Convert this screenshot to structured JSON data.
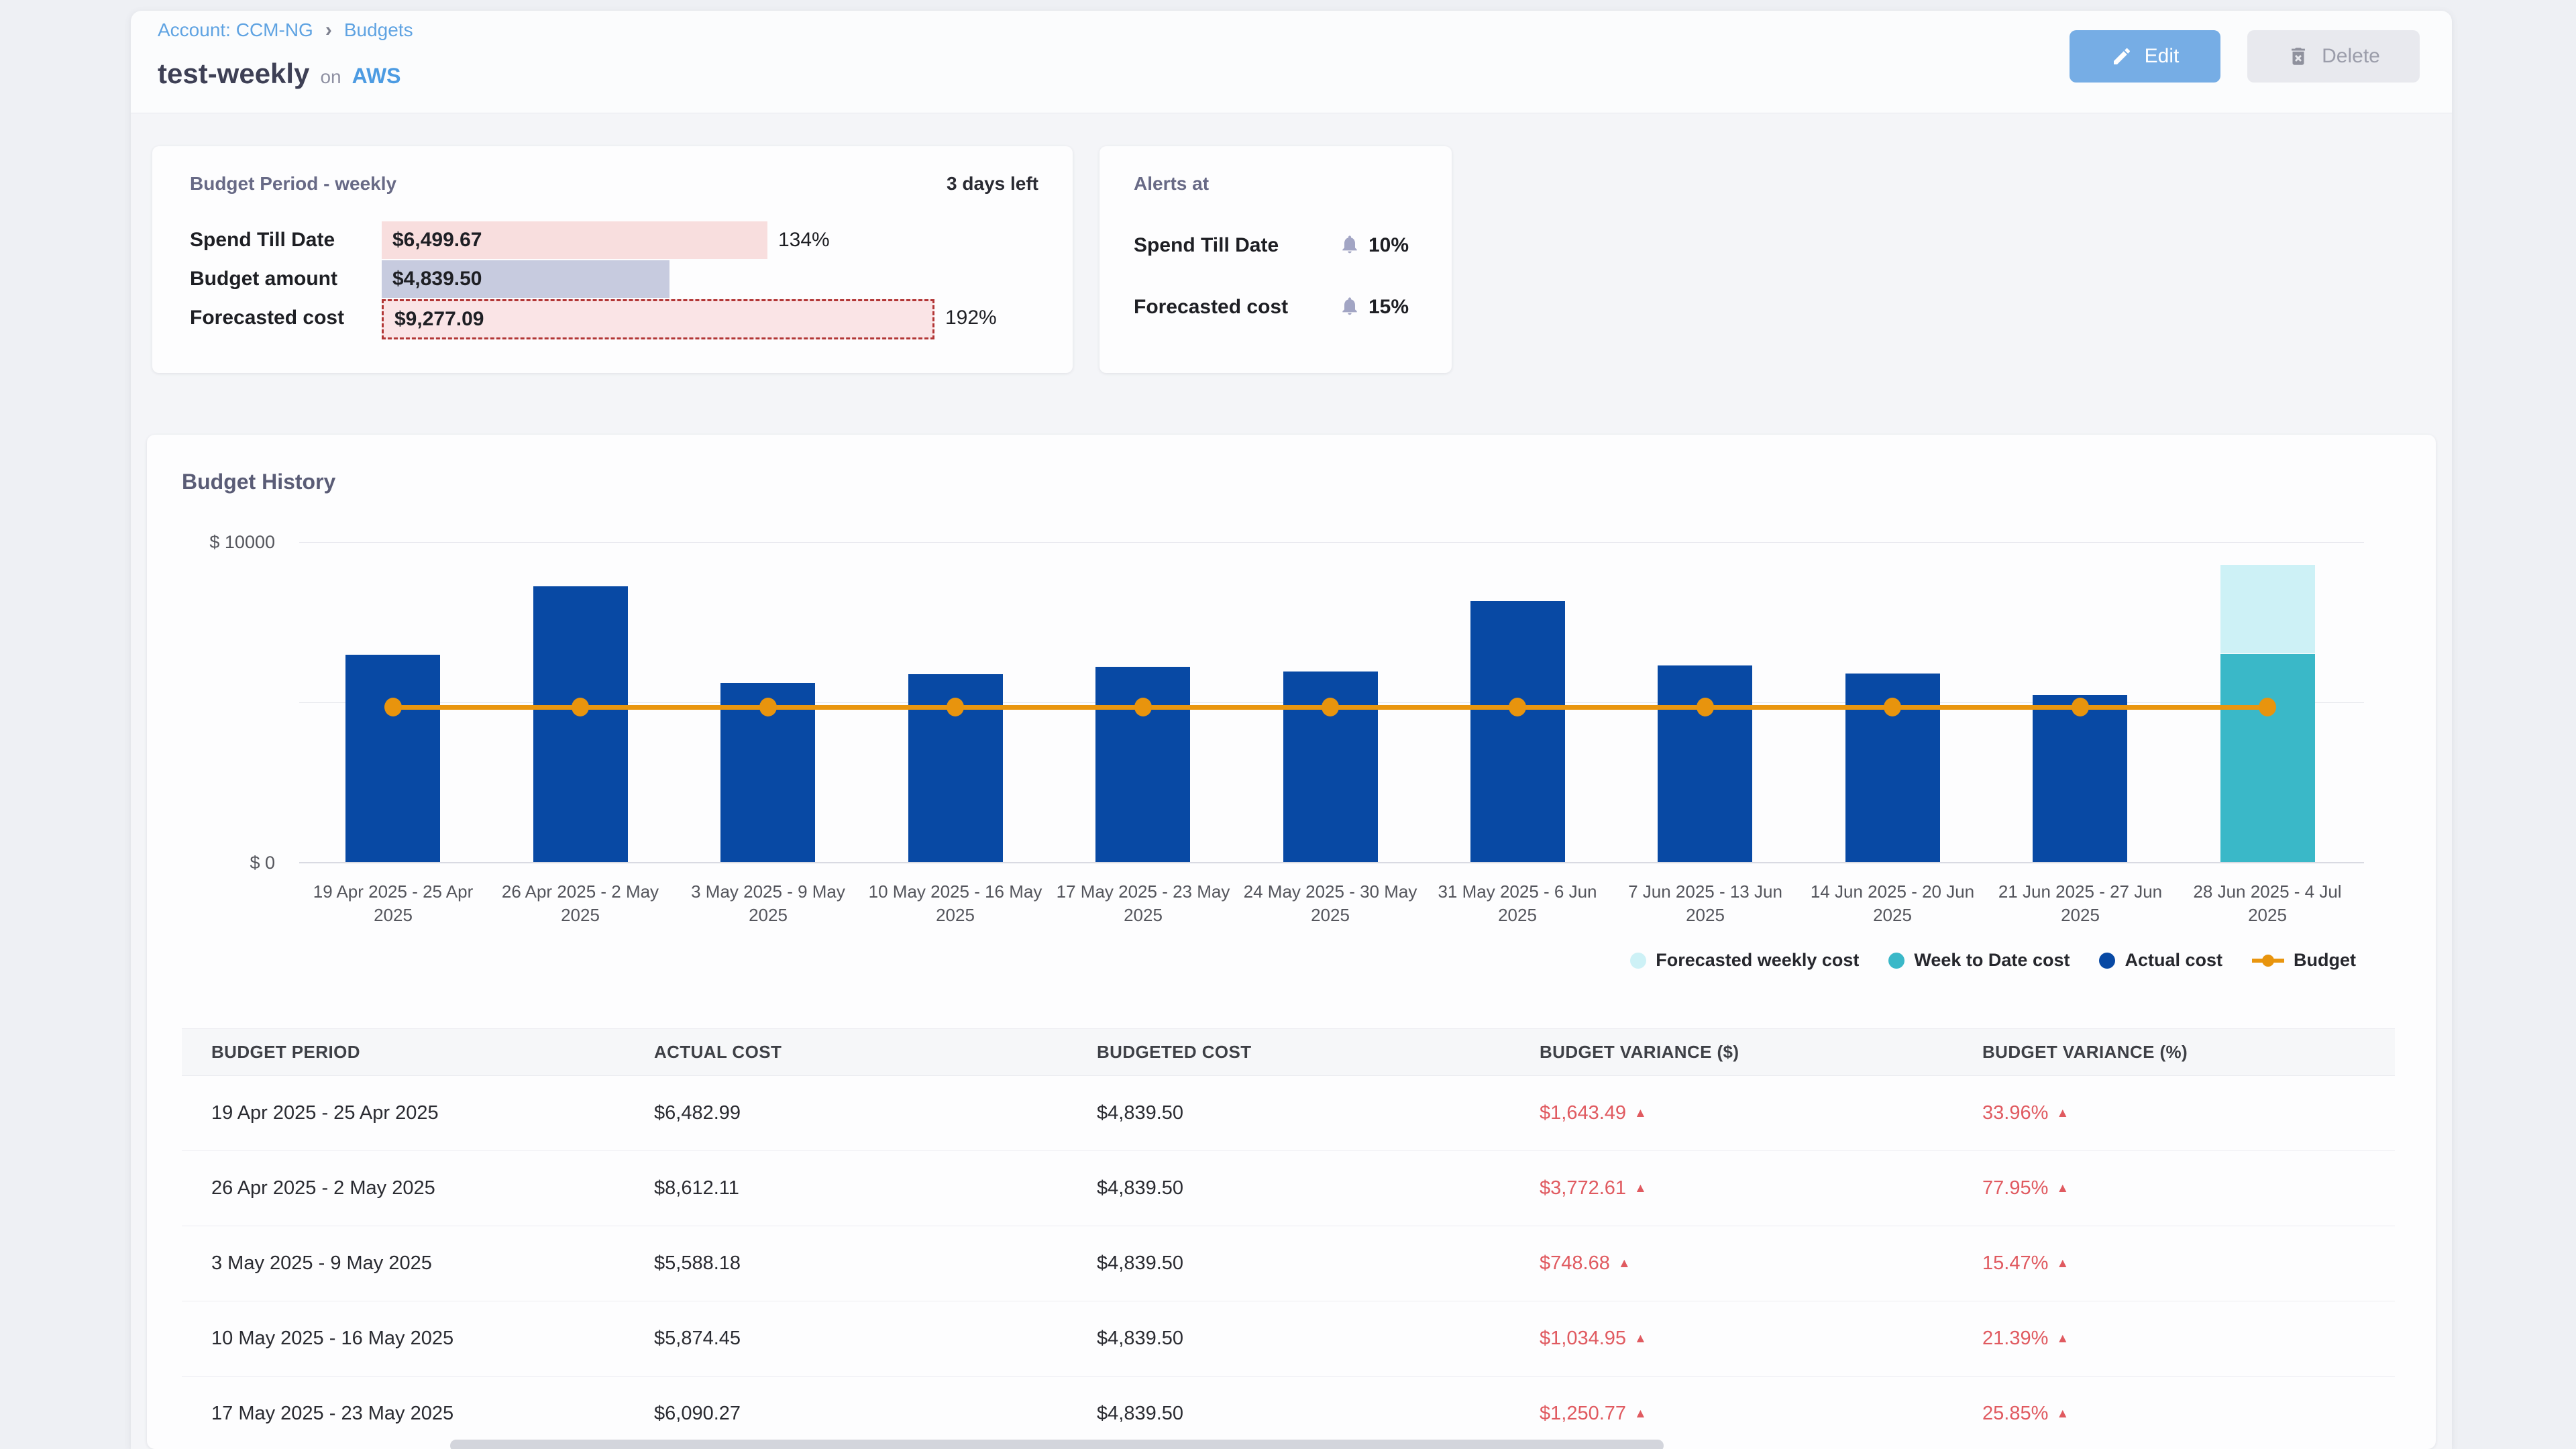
{
  "breadcrumb": {
    "account": "Account: CCM-NG",
    "separator": "›",
    "page": "Budgets"
  },
  "header": {
    "title": "test-weekly",
    "on_label": "on",
    "provider": "AWS",
    "edit_label": "Edit",
    "delete_label": "Delete"
  },
  "budget_period_card": {
    "title": "Budget Period - weekly",
    "days_left": "3 days left",
    "rows": [
      {
        "label": "Spend Till Date",
        "value": "$6,499.67",
        "percent_label": "134%",
        "percent": 134,
        "style": "spend"
      },
      {
        "label": "Budget amount",
        "value": "$4,839.50",
        "percent_label": "",
        "percent": 100,
        "style": "budget"
      },
      {
        "label": "Forecasted cost",
        "value": "$9,277.09",
        "percent_label": "192%",
        "percent": 192,
        "style": "forecast"
      }
    ]
  },
  "alerts_card": {
    "title": "Alerts at",
    "rows": [
      {
        "label": "Spend Till Date",
        "threshold": "10%"
      },
      {
        "label": "Forecasted cost",
        "threshold": "15%"
      }
    ]
  },
  "chart_data": {
    "type": "bar",
    "title": "Budget History",
    "ylabel_top": "$ 10000",
    "ylabel_bottom": "$ 0",
    "ymin": 0,
    "ymax": 10000,
    "gridlines": [
      0,
      5000,
      10000
    ],
    "legend_position": "bottom-right",
    "categories": [
      "19 Apr 2025 - 25 Apr 2025",
      "26 Apr 2025 - 2 May 2025",
      "3 May 2025 - 9 May 2025",
      "10 May 2025 - 16 May 2025",
      "17 May 2025 - 23 May 2025",
      "24 May 2025 - 30 May 2025",
      "31 May 2025 - 6 Jun 2025",
      "7 Jun 2025 - 13 Jun 2025",
      "14 Jun 2025 - 20 Jun 2025",
      "21 Jun 2025 - 27 Jun 2025",
      "28 Jun 2025 - 4 Jul 2025"
    ],
    "series": [
      {
        "name": "Actual cost",
        "type": "column",
        "color": "#0849a4",
        "values": [
          6482.99,
          8612.11,
          5588.18,
          5874.45,
          6090.27,
          5950,
          8150,
          6150,
          5900,
          5230,
          null
        ]
      },
      {
        "name": "Week to Date cost",
        "type": "column",
        "color": "#3ab8c8",
        "values": [
          null,
          null,
          null,
          null,
          null,
          null,
          null,
          null,
          null,
          null,
          6499.67
        ]
      },
      {
        "name": "Forecasted weekly cost",
        "type": "column-stacked-top",
        "color": "#cdf1f6",
        "values": [
          null,
          null,
          null,
          null,
          null,
          null,
          null,
          null,
          null,
          null,
          9277.09
        ]
      },
      {
        "name": "Budget",
        "type": "line",
        "color": "#e9960f",
        "value": 4839.5
      }
    ],
    "legend": [
      "Forecasted weekly cost",
      "Week to Date cost",
      "Actual cost",
      "Budget"
    ]
  },
  "table": {
    "columns": [
      "BUDGET PERIOD",
      "ACTUAL COST",
      "BUDGETED COST",
      "BUDGET VARIANCE ($)",
      "BUDGET VARIANCE (%)"
    ],
    "rows": [
      {
        "period": "19 Apr 2025 - 25 Apr 2025",
        "actual": "$6,482.99",
        "budgeted": "$4,839.50",
        "variance_usd": "$1,643.49",
        "variance_pct": "33.96%",
        "trend": "up"
      },
      {
        "period": "26 Apr 2025 - 2 May 2025",
        "actual": "$8,612.11",
        "budgeted": "$4,839.50",
        "variance_usd": "$3,772.61",
        "variance_pct": "77.95%",
        "trend": "up"
      },
      {
        "period": "3 May 2025 - 9 May 2025",
        "actual": "$5,588.18",
        "budgeted": "$4,839.50",
        "variance_usd": "$748.68",
        "variance_pct": "15.47%",
        "trend": "up"
      },
      {
        "period": "10 May 2025 - 16 May 2025",
        "actual": "$5,874.45",
        "budgeted": "$4,839.50",
        "variance_usd": "$1,034.95",
        "variance_pct": "21.39%",
        "trend": "up"
      },
      {
        "period": "17 May 2025 - 23 May 2025",
        "actual": "$6,090.27",
        "budgeted": "$4,839.50",
        "variance_usd": "$1,250.77",
        "variance_pct": "25.85%",
        "trend": "up"
      }
    ]
  },
  "ui": {
    "arrow_up_glyph": "▲"
  },
  "colors": {
    "actual_cost": "#0849a4",
    "week_to_date": "#3ab8c8",
    "forecasted_weekly": "#cdf1f6",
    "budget_line": "#e9960f",
    "variance_negative": "#e05a60",
    "link_blue": "#5fa3e2",
    "edit_button": "#76ade5"
  }
}
